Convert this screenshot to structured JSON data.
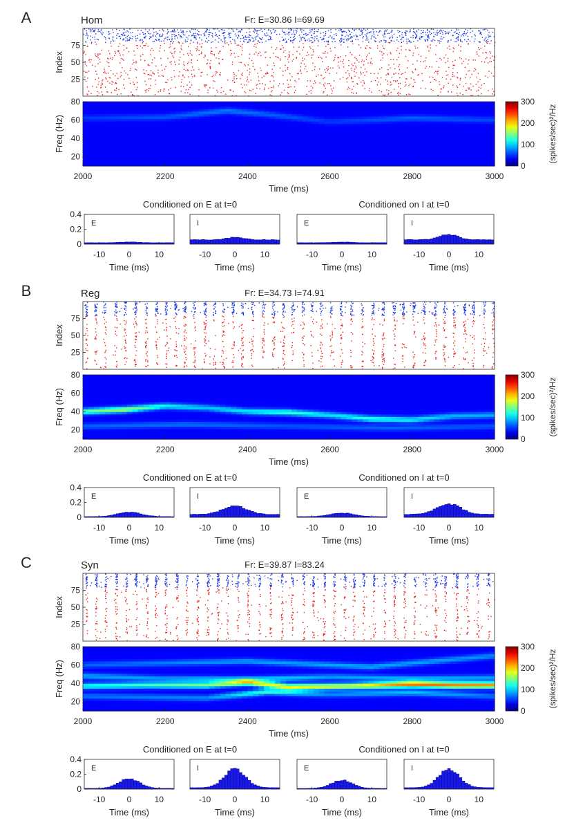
{
  "chart_data": {
    "type": "raster+spectrogram+histogram",
    "shared": {
      "raster_ylabel": "Index",
      "raster_yticks": [
        "25",
        "50",
        "75"
      ],
      "raster_ylim": [
        0,
        100
      ],
      "excitatory_index_range": [
        1,
        80
      ],
      "inhibitory_index_range": [
        81,
        100
      ],
      "spec_ylabel": "Freq (Hz)",
      "spec_yticks": [
        "20",
        "40",
        "60",
        "80"
      ],
      "spec_ylim": [
        10,
        80
      ],
      "xlabel": "Time (ms)",
      "xticks": [
        "2000",
        "2200",
        "2400",
        "2600",
        "2800",
        "3000"
      ],
      "xlim": [
        2000,
        3000
      ],
      "colorbar_label": "(spikes/sec)²/Hz",
      "colorbar_ticks": [
        "0",
        "100",
        "200",
        "300"
      ],
      "colorbar_range": [
        0,
        300
      ],
      "colors": {
        "excitatory": "#e8231c",
        "inhibitory": "#1f3ae0",
        "hist_bar": "#1a1ae6",
        "hist_edge": "#000080"
      },
      "hist_ylim": [
        0,
        0.4
      ],
      "hist_yticks": [
        "0",
        "0.2",
        "0.4"
      ],
      "hist_xticks": [
        "-10",
        "0",
        "10"
      ],
      "hist_xlim": [
        -15,
        15
      ],
      "hist_xlabel": "Time (ms)",
      "cond_E_title": "Conditioned on E at t=0",
      "cond_I_title": "Conditioned on I at t=0"
    },
    "panels": [
      {
        "letter": "A",
        "name": "Hom",
        "fr_text": "Fr: E=30.86 I=69.69",
        "spectrogram_ridges": [
          {
            "times": [
              2000,
              2200,
              2350,
              2450,
              2600,
              2800,
              3000
            ],
            "freq": [
              62,
              63,
              70,
              66,
              58,
              62,
              60
            ],
            "power": [
              20,
              30,
              45,
              35,
              20,
              35,
              25
            ]
          }
        ],
        "histograms": [
          {
            "label": "E",
            "peak": 0.03,
            "base": 0.02
          },
          {
            "label": "I",
            "peak": 0.09,
            "base": 0.06
          },
          {
            "label": "E",
            "peak": 0.03,
            "base": 0.02
          },
          {
            "label": "I",
            "peak": 0.13,
            "base": 0.06
          }
        ]
      },
      {
        "letter": "B",
        "name": "Reg",
        "fr_text": "Fr: E=34.73 I=74.91",
        "spectrogram_ridges": [
          {
            "times": [
              2000,
              2100,
              2200,
              2300,
              2400,
              2500,
              2600,
              2700,
              2800,
              2900,
              3000
            ],
            "freq": [
              40,
              42,
              46,
              44,
              40,
              39,
              36,
              32,
              31,
              35,
              36
            ],
            "power": [
              120,
              150,
              90,
              70,
              85,
              110,
              80,
              100,
              85,
              65,
              60
            ]
          },
          {
            "times": [
              2000,
              2250,
              2500,
              2750,
              3000
            ],
            "freq": [
              24,
              26,
              24,
              22,
              24
            ],
            "power": [
              35,
              40,
              30,
              35,
              30
            ]
          }
        ],
        "histograms": [
          {
            "label": "E",
            "peak": 0.07,
            "base": 0.01
          },
          {
            "label": "I",
            "peak": 0.15,
            "base": 0.04
          },
          {
            "label": "E",
            "peak": 0.06,
            "base": 0.01
          },
          {
            "label": "I",
            "peak": 0.18,
            "base": 0.04
          }
        ]
      },
      {
        "letter": "C",
        "name": "Syn",
        "fr_text": "Fr: E=39.87 I=83.24",
        "spectrogram_ridges": [
          {
            "times": [
              2000,
              2150,
              2300,
              2400,
              2500,
              2650,
              2800,
              2900,
              3000
            ],
            "freq": [
              37,
              38,
              38,
              41,
              36,
              37,
              39,
              38,
              38
            ],
            "power": [
              95,
              110,
              130,
              170,
              180,
              165,
              235,
              220,
              215
            ]
          },
          {
            "times": [
              2000,
              2200,
              2400,
              2600,
              2800,
              3000
            ],
            "freq": [
              48,
              45,
              44,
              47,
              45,
              46
            ],
            "power": [
              60,
              55,
              85,
              55,
              65,
              55
            ]
          },
          {
            "times": [
              2000,
              2300,
              2450,
              2600,
              2800,
              3000
            ],
            "freq": [
              26,
              24,
              31,
              28,
              30,
              26
            ],
            "power": [
              40,
              50,
              110,
              50,
              70,
              40
            ]
          },
          {
            "times": [
              2000,
              2400,
              2700,
              3000
            ],
            "freq": [
              60,
              64,
              58,
              70
            ],
            "power": [
              35,
              55,
              60,
              50
            ]
          }
        ],
        "histograms": [
          {
            "label": "E",
            "peak": 0.14,
            "base": 0.01
          },
          {
            "label": "I",
            "peak": 0.27,
            "base": 0.02
          },
          {
            "label": "E",
            "peak": 0.12,
            "base": 0.01
          },
          {
            "label": "I",
            "peak": 0.27,
            "base": 0.02
          }
        ]
      }
    ]
  }
}
